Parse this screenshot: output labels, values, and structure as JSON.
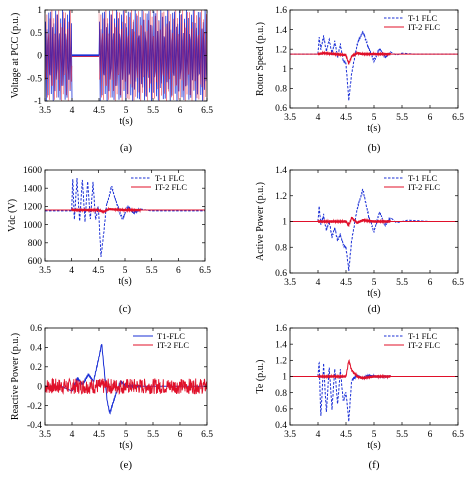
{
  "chart_data": [
    {
      "type": "line",
      "caption": "(a)",
      "ylabel": "Voltage at PCC (p.u.)",
      "xlabel": "t(s)",
      "xlim": [
        3.5,
        6.5
      ],
      "ylim": [
        -1,
        1
      ],
      "xticks": [
        "3.5",
        "4",
        "4.5",
        "5",
        "5.5",
        "6",
        "6.5"
      ],
      "yticks": [
        "1",
        "0.5",
        "0",
        "-0.5",
        "-1"
      ],
      "legend": [],
      "colors": [
        "#1a2fd6",
        "#e0102a"
      ],
      "segments": [
        {
          "type": "ac_band",
          "x": [
            3.5,
            4.0
          ],
          "amplitude": 1
        },
        {
          "type": "level",
          "x": [
            4.0,
            4.5
          ],
          "value": 0
        },
        {
          "type": "ac_band",
          "x": [
            4.5,
            6.5
          ],
          "amplitude": 1
        }
      ]
    },
    {
      "type": "line",
      "caption": "(b)",
      "ylabel": "Rotor Speed (p.u.)",
      "xlabel": "t(s)",
      "xlim": [
        3.5,
        6.5
      ],
      "ylim": [
        0.6,
        1.6
      ],
      "xticks": [
        "3.5",
        "4",
        "4.5",
        "5",
        "5.5",
        "6",
        "6.5"
      ],
      "yticks": [
        "1.6",
        "1.4",
        "1.2",
        "1",
        "0.8",
        "0.6"
      ],
      "legend": [
        "T-1 FLC",
        "IT-2 FLC"
      ],
      "legend_pos": "top-right",
      "series": [
        {
          "name": "T-1 FLC",
          "color": "#1a2fd6",
          "style": "dashed",
          "x": [
            3.5,
            4.0,
            4.02,
            4.05,
            4.1,
            4.15,
            4.2,
            4.25,
            4.3,
            4.35,
            4.4,
            4.45,
            4.5,
            4.55,
            4.6,
            4.65,
            4.7,
            4.8,
            4.9,
            5.0,
            5.1,
            5.2,
            5.3,
            5.4,
            5.5,
            5.7,
            6.0,
            6.5
          ],
          "y": [
            1.15,
            1.15,
            1.32,
            1.2,
            1.33,
            1.18,
            1.3,
            1.15,
            1.28,
            1.12,
            1.25,
            1.08,
            1.05,
            0.68,
            0.95,
            1.1,
            1.25,
            1.38,
            1.22,
            1.08,
            1.2,
            1.12,
            1.17,
            1.14,
            1.16,
            1.15,
            1.15,
            1.15
          ]
        },
        {
          "name": "IT-2 FLC",
          "color": "#e0102a",
          "style": "solid",
          "x": [
            3.5,
            4.0,
            4.1,
            4.3,
            4.5,
            4.55,
            4.6,
            4.7,
            4.8,
            5.0,
            5.5,
            6.0,
            6.5
          ],
          "y": [
            1.15,
            1.15,
            1.16,
            1.15,
            1.14,
            1.05,
            1.13,
            1.16,
            1.15,
            1.15,
            1.15,
            1.15,
            1.15
          ]
        }
      ]
    },
    {
      "type": "line",
      "caption": "(c)",
      "ylabel": "Vdc (V)",
      "xlabel": "t(s)",
      "xlim": [
        3.5,
        6.5
      ],
      "ylim": [
        600,
        1600
      ],
      "xticks": [
        "3.5",
        "4",
        "4.5",
        "5",
        "5.5",
        "6",
        "6.5"
      ],
      "yticks": [
        "1600",
        "1400",
        "1200",
        "1000",
        "800",
        "600"
      ],
      "legend": [
        "T-1 FLC",
        "IT-2 FLC"
      ],
      "legend_pos": "top-right",
      "series": [
        {
          "name": "T-1 FLC",
          "color": "#1a2fd6",
          "style": "dashed",
          "x": [
            3.5,
            4.0,
            4.02,
            4.05,
            4.1,
            4.15,
            4.2,
            4.25,
            4.3,
            4.35,
            4.4,
            4.45,
            4.5,
            4.55,
            4.6,
            4.65,
            4.75,
            4.85,
            4.95,
            5.05,
            5.15,
            5.3,
            5.5,
            5.8,
            6.5
          ],
          "y": [
            1150,
            1150,
            1520,
            1050,
            1500,
            1030,
            1500,
            1040,
            1480,
            1050,
            1460,
            1050,
            1200,
            650,
            900,
            1200,
            1420,
            1220,
            1060,
            1200,
            1130,
            1170,
            1150,
            1150,
            1150
          ]
        },
        {
          "name": "IT-2 FLC",
          "color": "#e0102a",
          "style": "solid",
          "x": [
            3.5,
            4.0,
            4.5,
            4.6,
            4.7,
            5.0,
            6.5
          ],
          "y": [
            1160,
            1160,
            1160,
            1140,
            1170,
            1160,
            1160
          ]
        }
      ]
    },
    {
      "type": "line",
      "caption": "(d)",
      "ylabel": "Active Power (p.u.)",
      "xlabel": "t(s)",
      "xlim": [
        3.5,
        6.5
      ],
      "ylim": [
        0.6,
        1.4
      ],
      "xticks": [
        "3.5",
        "4",
        "4.5",
        "5",
        "5.5",
        "6",
        "6.5"
      ],
      "yticks": [
        "1.4",
        "1.2",
        "1",
        "0.8",
        "0.6"
      ],
      "legend": [
        "T-1 FLC",
        "IT-2 FLC"
      ],
      "legend_pos": "top-right",
      "series": [
        {
          "name": "T-1 FLC",
          "color": "#1a2fd6",
          "style": "dashed",
          "x": [
            3.5,
            4.0,
            4.02,
            4.05,
            4.1,
            4.15,
            4.2,
            4.25,
            4.3,
            4.35,
            4.4,
            4.45,
            4.5,
            4.55,
            4.6,
            4.7,
            4.8,
            4.9,
            5.0,
            5.1,
            5.2,
            5.3,
            5.4,
            5.6,
            6.0,
            6.5
          ],
          "y": [
            1.0,
            1.0,
            1.12,
            0.98,
            1.05,
            0.93,
            1.0,
            0.88,
            0.95,
            0.85,
            0.9,
            0.82,
            0.8,
            0.62,
            0.85,
            1.1,
            1.25,
            1.05,
            0.92,
            1.07,
            0.97,
            1.03,
            0.99,
            1.01,
            1.0,
            1.0
          ]
        },
        {
          "name": "IT-2 FLC",
          "color": "#e0102a",
          "style": "solid",
          "x": [
            3.5,
            4.0,
            4.5,
            4.55,
            4.6,
            4.7,
            4.8,
            5.0,
            6.5
          ],
          "y": [
            1.0,
            1.0,
            1.0,
            0.97,
            1.03,
            0.99,
            1.01,
            1.0,
            1.0
          ]
        }
      ]
    },
    {
      "type": "line",
      "caption": "(e)",
      "ylabel": "Reactive Power (p.u.)",
      "xlabel": "t(s)",
      "xlim": [
        3.5,
        6.5
      ],
      "ylim": [
        -0.4,
        0.6
      ],
      "xticks": [
        "3.5",
        "4",
        "4.5",
        "5",
        "5.5",
        "6",
        "6.5"
      ],
      "yticks": [
        "0.6",
        "0.4",
        "0.2",
        "0",
        "-0.2",
        "-0.4"
      ],
      "legend": [
        "T1-FLC",
        "IT-2 FLC"
      ],
      "legend_pos": "top-right",
      "series": [
        {
          "name": "T1-FLC",
          "color": "#1a2fd6",
          "style": "solid",
          "x": [
            3.5,
            3.8,
            4.0,
            4.1,
            4.2,
            4.3,
            4.4,
            4.5,
            4.55,
            4.6,
            4.65,
            4.7,
            4.8,
            4.9,
            5.0,
            5.2,
            5.5,
            6.0,
            6.5
          ],
          "y": [
            0.0,
            0.0,
            -0.05,
            0.08,
            0.02,
            0.12,
            0.05,
            0.3,
            0.44,
            0.15,
            -0.15,
            -0.28,
            -0.1,
            0.05,
            0.0,
            0.0,
            0.0,
            0.0,
            0.0
          ]
        },
        {
          "name": "IT-2 FLC",
          "color": "#e0102a",
          "style": "noise",
          "x": [
            3.5,
            6.5
          ],
          "y": [
            0.0,
            0.0
          ],
          "band": 0.08
        }
      ]
    },
    {
      "type": "line",
      "caption": "(f)",
      "ylabel": "Te (p.u.)",
      "xlabel": "t(s)",
      "xlim": [
        3.5,
        6.5
      ],
      "ylim": [
        0.4,
        1.6
      ],
      "xticks": [
        "3.5",
        "4",
        "4.5",
        "5",
        "5.5",
        "6",
        "6.5"
      ],
      "yticks": [
        "1.6",
        "1.4",
        "1.2",
        "1",
        "0.8",
        "0.6",
        "0.4"
      ],
      "legend": [
        "T-1 FLC",
        "IT-2 FLC"
      ],
      "legend_pos": "top-right",
      "series": [
        {
          "name": "T-1 FLC",
          "color": "#1a2fd6",
          "style": "dashed",
          "x": [
            3.5,
            4.0,
            4.02,
            4.05,
            4.1,
            4.15,
            4.2,
            4.25,
            4.3,
            4.35,
            4.4,
            4.45,
            4.5,
            4.55,
            4.6,
            4.7,
            4.8,
            4.9,
            5.0,
            5.2,
            6.5
          ],
          "y": [
            1.0,
            1.0,
            1.2,
            0.5,
            1.15,
            0.55,
            1.12,
            0.6,
            1.1,
            0.65,
            1.08,
            0.7,
            0.8,
            0.45,
            0.95,
            1.02,
            0.98,
            1.01,
            1.0,
            1.0,
            1.0
          ]
        },
        {
          "name": "IT-2 FLC",
          "color": "#e0102a",
          "style": "solid",
          "x": [
            3.5,
            4.0,
            4.5,
            4.55,
            4.6,
            4.7,
            4.8,
            5.0,
            6.5
          ],
          "y": [
            1.0,
            1.0,
            1.0,
            1.2,
            1.08,
            1.0,
            0.98,
            1.0,
            1.0
          ]
        }
      ]
    }
  ]
}
